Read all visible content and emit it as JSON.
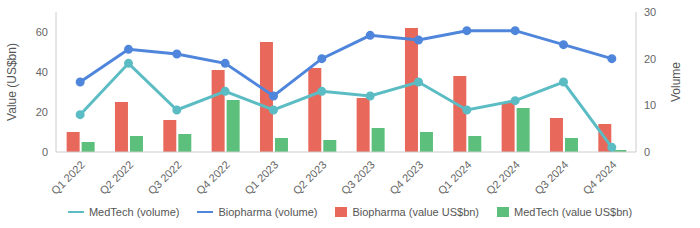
{
  "chart_data": {
    "type": "bar",
    "y_label": "Value (US$bn)",
    "y2_label": "Volume",
    "categories": [
      "Q1 2022",
      "Q2 2022",
      "Q3 2022",
      "Q4 2022",
      "Q1 2023",
      "Q2 2023",
      "Q3 2023",
      "Q4 2023",
      "Q1 2024",
      "Q2 2024",
      "Q3 2024",
      "Q4 2024"
    ],
    "ylim": [
      0,
      70
    ],
    "yticks": [
      0,
      20,
      40,
      60
    ],
    "y2lim": [
      0,
      30
    ],
    "y2ticks": [
      0,
      10,
      20,
      30
    ],
    "grid": false,
    "legend": "bottom",
    "series": [
      {
        "name": "MedTech (volume)",
        "type": "line",
        "axis": "y2",
        "color": "#5bbcc4",
        "marker": "circle",
        "values": [
          8,
          19,
          9,
          13,
          9,
          13,
          12,
          15,
          9,
          11,
          15,
          1
        ]
      },
      {
        "name": "Biopharma (volume)",
        "type": "line",
        "axis": "y2",
        "color": "#4f86dc",
        "marker": "circle",
        "values": [
          15,
          22,
          21,
          19,
          12,
          20,
          25,
          24,
          26,
          26,
          23,
          20
        ]
      },
      {
        "name": "Biopharma (value US$bn)",
        "type": "bar",
        "color": "#e8695c",
        "values": [
          10,
          25,
          16,
          41,
          55,
          42,
          27,
          62,
          38,
          25,
          17,
          14
        ]
      },
      {
        "name": "MedTech (value US$bn)",
        "type": "bar",
        "color": "#5dbf7c",
        "values": [
          5,
          8,
          9,
          26,
          7,
          6,
          12,
          10,
          8,
          22,
          7,
          1
        ]
      }
    ]
  }
}
